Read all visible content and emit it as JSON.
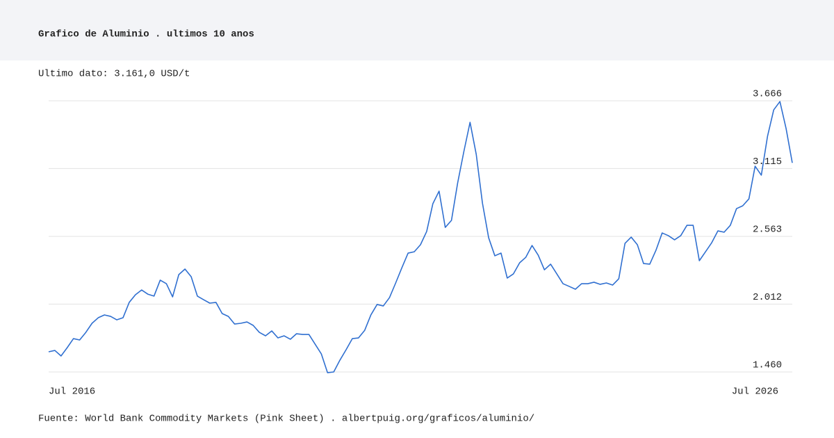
{
  "chart_data": {
    "type": "line",
    "title": "Grafico de Aluminio . ultimos 10 anos",
    "subtitle": "Ultimo dato: 3.161,0 USD/t",
    "source": "Fuente: World Bank Commodity Markets (Pink Sheet) . albertpuig.org/graficos/aluminio/",
    "categories": [
      "Jul 2016",
      null,
      null,
      null,
      null,
      null,
      null,
      null,
      null,
      null,
      null,
      null,
      null,
      null,
      null,
      null,
      null,
      null,
      null,
      null,
      null,
      null,
      null,
      null,
      null,
      null,
      null,
      null,
      null,
      null,
      null,
      null,
      null,
      null,
      null,
      null,
      null,
      null,
      null,
      null,
      null,
      null,
      null,
      null,
      null,
      null,
      null,
      null,
      null,
      null,
      null,
      null,
      null,
      null,
      null,
      null,
      null,
      null,
      null,
      null,
      null,
      null,
      null,
      null,
      null,
      null,
      null,
      null,
      null,
      null,
      null,
      null,
      null,
      null,
      null,
      null,
      null,
      null,
      null,
      null,
      null,
      null,
      null,
      null,
      null,
      null,
      null,
      null,
      null,
      null,
      null,
      null,
      null,
      null,
      null,
      null,
      null,
      null,
      null,
      null,
      null,
      null,
      null,
      null,
      null,
      null,
      null,
      null,
      null,
      null,
      null,
      null,
      null,
      null,
      null,
      null,
      null,
      null,
      null,
      null,
      "Jul 2026"
    ],
    "values": [
      1624,
      1635,
      1590,
      1658,
      1731,
      1720,
      1782,
      1856,
      1901,
      1924,
      1912,
      1884,
      1901,
      2026,
      2088,
      2127,
      2093,
      2077,
      2207,
      2178,
      2071,
      2252,
      2297,
      2235,
      2077,
      2048,
      2020,
      2026,
      1935,
      1912,
      1850,
      1856,
      1867,
      1839,
      1782,
      1754,
      1794,
      1737,
      1754,
      1726,
      1771,
      1765,
      1765,
      1686,
      1607,
      1454,
      1460,
      1556,
      1641,
      1731,
      1737,
      1799,
      1924,
      2009,
      1997,
      2065,
      2184,
      2308,
      2427,
      2438,
      2495,
      2603,
      2829,
      2931,
      2636,
      2693,
      2998,
      3253,
      3491,
      3230,
      2834,
      2552,
      2405,
      2427,
      2224,
      2258,
      2348,
      2393,
      2489,
      2410,
      2291,
      2337,
      2258,
      2178,
      2156,
      2133,
      2178,
      2178,
      2190,
      2173,
      2184,
      2167,
      2218,
      2506,
      2557,
      2495,
      2342,
      2337,
      2450,
      2591,
      2569,
      2535,
      2569,
      2653,
      2653,
      2365,
      2438,
      2512,
      2608,
      2597,
      2653,
      2789,
      2812,
      2868,
      3134,
      3061,
      3377,
      3592,
      3660,
      3440,
      3161
    ],
    "color": "#2f6fd0",
    "ylim": [
      1460,
      3666
    ],
    "yticks": [
      {
        "value": 1460,
        "label": "1.460"
      },
      {
        "value": 2012,
        "label": "2.012"
      },
      {
        "value": 2563,
        "label": "2.563"
      },
      {
        "value": 3115,
        "label": "3.115"
      },
      {
        "value": 3666,
        "label": "3.666"
      }
    ],
    "grid": true
  }
}
